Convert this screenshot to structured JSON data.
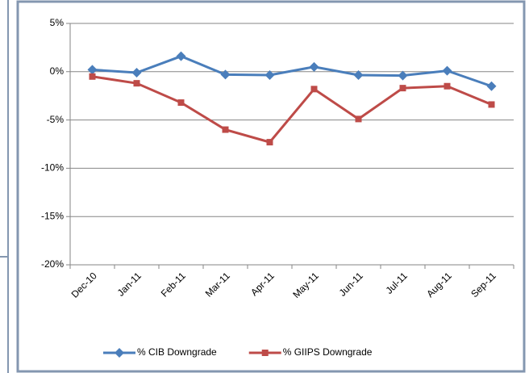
{
  "chart_data": {
    "type": "line",
    "categories": [
      "Dec-10",
      "Jan-11",
      "Feb-11",
      "Mar-11",
      "Apr-11",
      "May-11",
      "Jun-11",
      "Jul-11",
      "Aug-11",
      "Sep-11"
    ],
    "series": [
      {
        "name": "% CIB Downgrade",
        "color": "#4a7ebb",
        "marker": "diamond",
        "values": [
          0.2,
          -0.1,
          1.6,
          -0.3,
          -0.35,
          0.5,
          -0.35,
          -0.4,
          0.1,
          -1.5
        ]
      },
      {
        "name": "% GIIPS Downgrade",
        "color": "#be4b48",
        "marker": "square",
        "values": [
          -0.5,
          -1.2,
          -3.2,
          -6.0,
          -7.3,
          -1.8,
          -4.9,
          -1.7,
          -1.5,
          -3.4
        ]
      }
    ],
    "ylim": [
      -20,
      5
    ],
    "yticks": [
      {
        "value": -20,
        "label": "-20%"
      },
      {
        "value": -15,
        "label": "-15%"
      },
      {
        "value": -10,
        "label": "-10%"
      },
      {
        "value": -5,
        "label": "-5%"
      },
      {
        "value": 0,
        "label": "0%"
      },
      {
        "value": 5,
        "label": "5%"
      }
    ],
    "grid": true,
    "legend": "bottom"
  }
}
